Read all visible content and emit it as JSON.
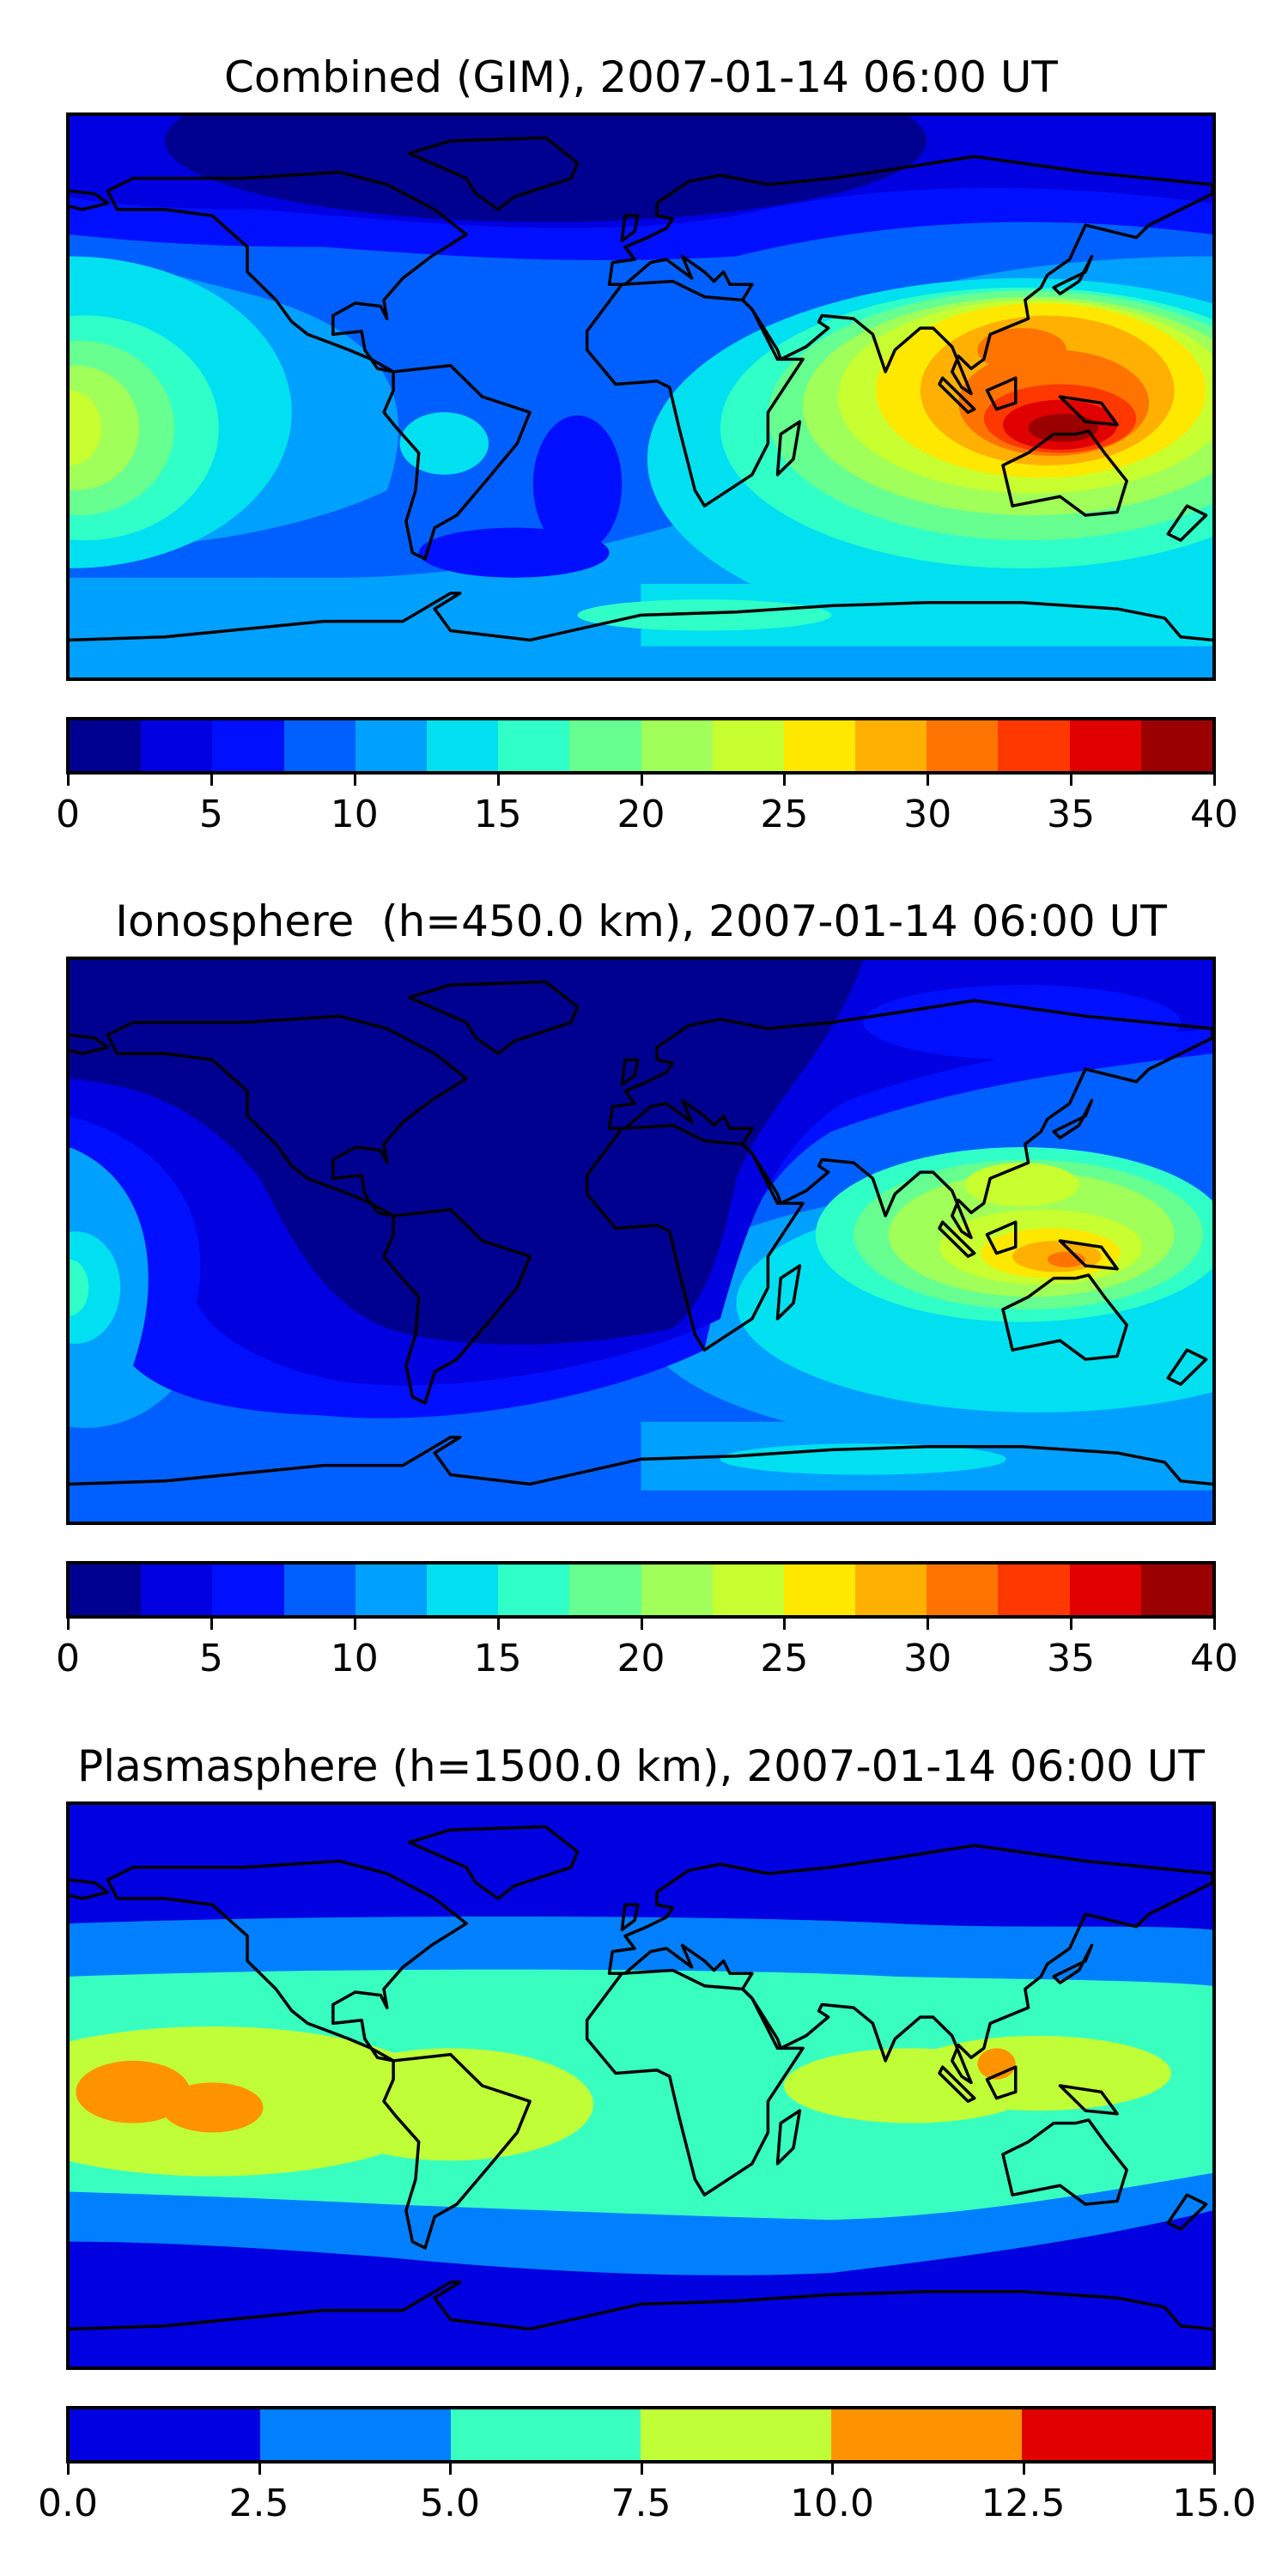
{
  "chart_data": [
    {
      "type": "heatmap",
      "title": "Combined (GIM), 2007-01-14 06:00 UT",
      "projection": "equirectangular world map with coastlines",
      "colorbar": {
        "levels": [
          0,
          2.5,
          5,
          7.5,
          10,
          12.5,
          15,
          17.5,
          20,
          22.5,
          25,
          27.5,
          30,
          32.5,
          35,
          37.5,
          40
        ],
        "colors": [
          "#000090",
          "#0000e0",
          "#0010ff",
          "#0060ff",
          "#00a0ff",
          "#00e0f0",
          "#30ffc8",
          "#66ff90",
          "#a0ff58",
          "#c8ff30",
          "#ffe800",
          "#ffb000",
          "#ff7400",
          "#ff3800",
          "#e00000",
          "#9a0000"
        ],
        "ticks": [
          "0",
          "5",
          "10",
          "15",
          "20",
          "25",
          "30",
          "35",
          "40"
        ],
        "range": [
          0,
          40
        ]
      },
      "features": {
        "maximum_region": "Indonesia / northern Australia",
        "maximum_value_band": [
          37.5,
          40
        ],
        "minimum_region": "North Atlantic / Arctic",
        "minimum_value_band": [
          0,
          2.5
        ]
      }
    },
    {
      "type": "heatmap",
      "title": "Ionosphere  (h=450.0 km), 2007-01-14 06:00 UT",
      "projection": "equirectangular world map with coastlines",
      "colorbar": {
        "levels": [
          0,
          2.5,
          5,
          7.5,
          10,
          12.5,
          15,
          17.5,
          20,
          22.5,
          25,
          27.5,
          30,
          32.5,
          35,
          37.5,
          40
        ],
        "colors": [
          "#000090",
          "#0000e0",
          "#0010ff",
          "#0060ff",
          "#00a0ff",
          "#00e0f0",
          "#30ffc8",
          "#66ff90",
          "#a0ff58",
          "#c8ff30",
          "#ffe800",
          "#ffb000",
          "#ff7400",
          "#ff3800",
          "#e00000",
          "#9a0000"
        ],
        "ticks": [
          "0",
          "5",
          "10",
          "15",
          "20",
          "25",
          "30",
          "35",
          "40"
        ],
        "range": [
          0,
          40
        ]
      },
      "features": {
        "maximum_region": "Indonesia / northern Australia",
        "maximum_value_band": [
          30,
          32.5
        ],
        "minimum_region": "Americas / Atlantic",
        "minimum_value_band": [
          0,
          2.5
        ]
      }
    },
    {
      "type": "heatmap",
      "title": "Plasmasphere (h=1500.0 km), 2007-01-14 06:00 UT",
      "projection": "equirectangular world map with coastlines",
      "colorbar": {
        "levels": [
          0,
          2.5,
          5,
          7.5,
          10,
          12.5,
          15
        ],
        "colors": [
          "#0000e0",
          "#0080ff",
          "#38ffc0",
          "#c0ff38",
          "#ff9400",
          "#e00000"
        ],
        "ticks": [
          "0.0",
          "2.5",
          "5.0",
          "7.5",
          "10.0",
          "12.5",
          "15.0"
        ],
        "range": [
          0,
          15
        ]
      },
      "features": {
        "maximum_region": "Central Pacific and Southeast Asia",
        "maximum_value_band": [
          10,
          12.5
        ],
        "minimum_region": "polar regions",
        "minimum_value_band": [
          0,
          2.5
        ]
      }
    }
  ]
}
